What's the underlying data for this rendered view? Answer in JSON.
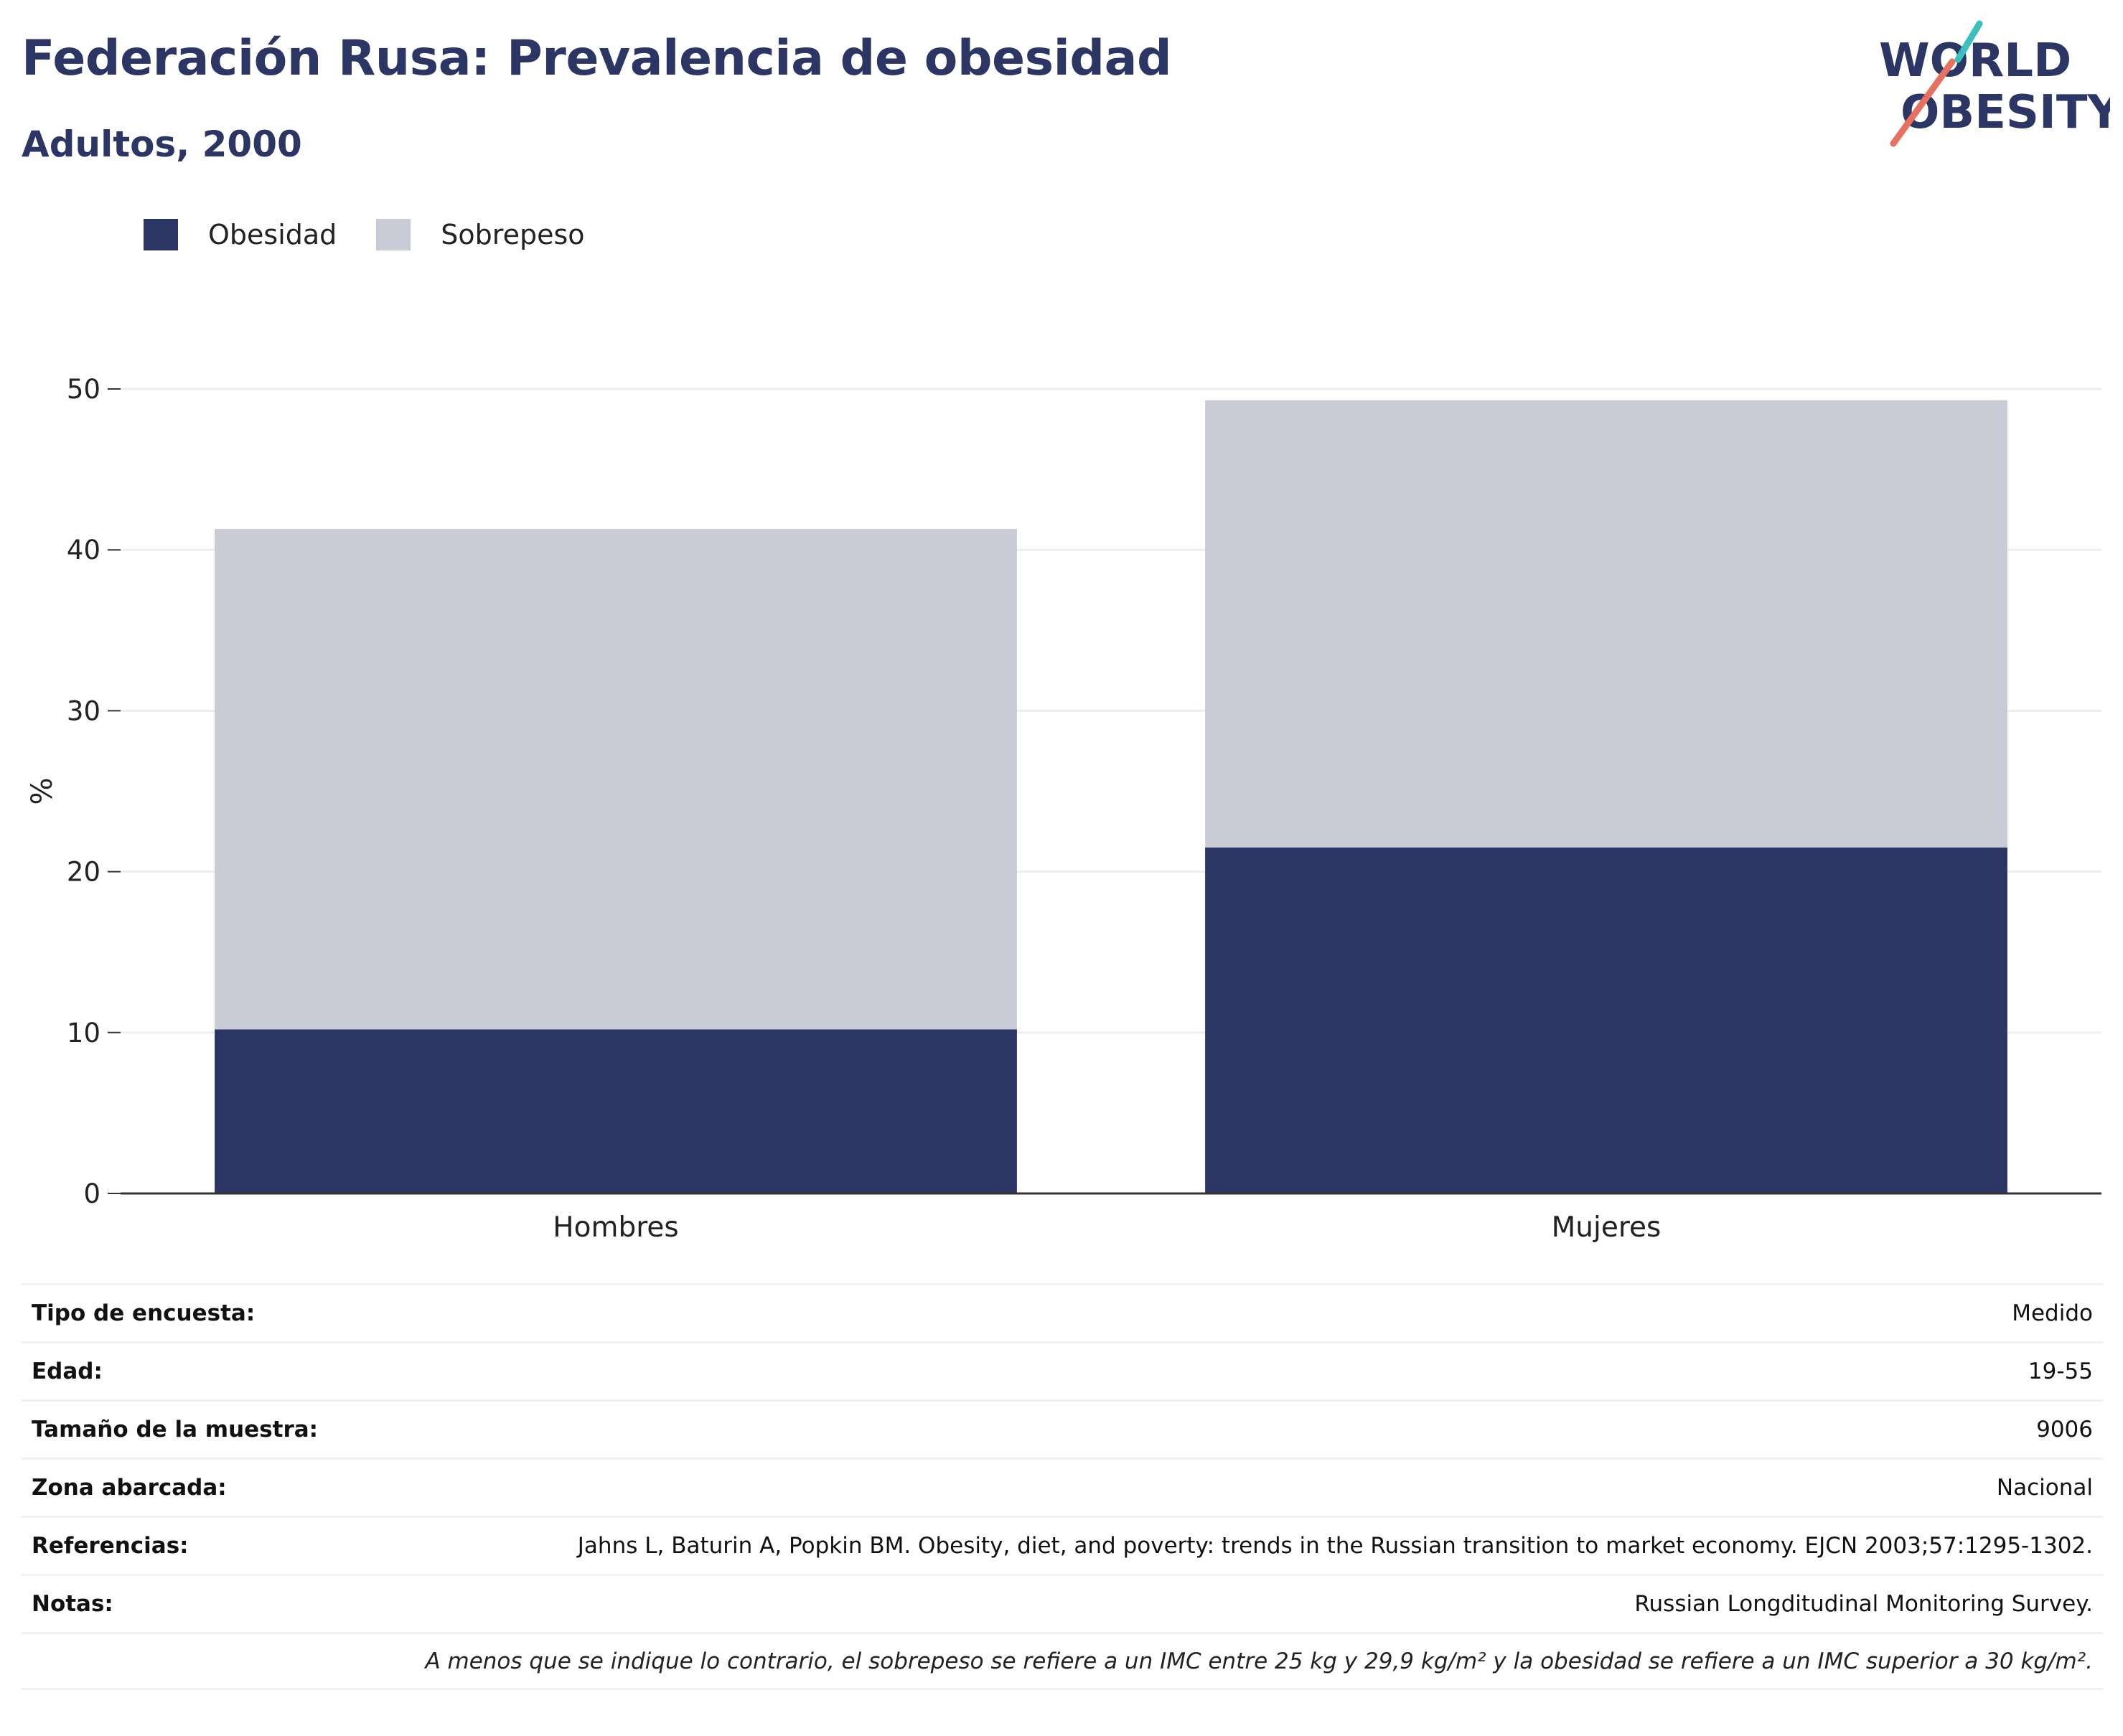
{
  "header": {
    "title": "Federación Rusa: Prevalencia de obesidad",
    "subtitle": "Adultos, 2000"
  },
  "logo": {
    "line1": "WORLD",
    "line2": "OBESITY",
    "icon": "world-obesity-logo"
  },
  "legend": [
    {
      "label": "Obesidad",
      "color": "#2b3664"
    },
    {
      "label": "Sobrepeso",
      "color": "#c9ccd7"
    }
  ],
  "chart_data": {
    "type": "bar",
    "stacked": true,
    "categories": [
      "Hombres",
      "Mujeres"
    ],
    "series": [
      {
        "name": "Obesidad",
        "color": "#2b3664",
        "values": [
          10.2,
          21.5
        ]
      },
      {
        "name": "Sobrepeso",
        "color": "#c9ccd7",
        "values": [
          31.1,
          27.8
        ]
      }
    ],
    "ylabel": "%",
    "ylim": [
      0,
      50
    ],
    "yticks": [
      0,
      10,
      20,
      30,
      40,
      50
    ],
    "grid": true,
    "legend_position": "top-left"
  },
  "info": [
    {
      "key": "Tipo de encuesta:",
      "value": "Medido"
    },
    {
      "key": "Edad:",
      "value": "19-55"
    },
    {
      "key": "Tamaño de la muestra:",
      "value": "9006"
    },
    {
      "key": "Zona abarcada:",
      "value": "Nacional"
    },
    {
      "key": "Referencias:",
      "value": "Jahns L, Baturin A, Popkin BM. Obesity, diet, and poverty: trends in the Russian transition to market economy. EJCN 2003;57:1295-1302."
    },
    {
      "key": "Notas:",
      "value": "Russian Longditudinal Monitoring Survey."
    }
  ],
  "footnote": "A menos que se indique lo contrario, el sobrepeso se refiere a un IMC entre 25 kg y 29,9 kg/m² y la obesidad se refiere a un IMC superior a 30 kg/m²."
}
